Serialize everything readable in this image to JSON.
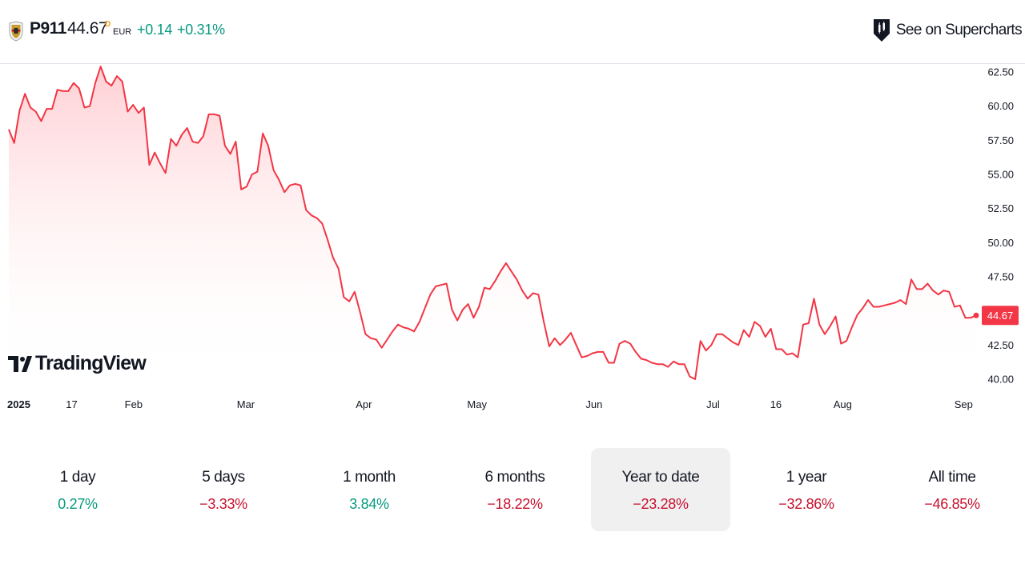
{
  "header": {
    "symbol": "P911",
    "price": "44.67",
    "price_flag": "D",
    "currency": "EUR",
    "change_abs": "+0.14",
    "change_pct": "+0.31%",
    "supercharts_label": "See on Supercharts"
  },
  "branding": {
    "tradingview_label": "TradingView"
  },
  "colors": {
    "line": "#f23645",
    "positive": "#089981",
    "negative": "#c8102e",
    "fill_top": "#ffcdd2"
  },
  "periods": [
    {
      "label": "1 day",
      "value": "0.27%",
      "sign": "pos",
      "active": false
    },
    {
      "label": "5 days",
      "value": "−3.33%",
      "sign": "neg",
      "active": false
    },
    {
      "label": "1 month",
      "value": "3.84%",
      "sign": "pos",
      "active": false
    },
    {
      "label": "6 months",
      "value": "−18.22%",
      "sign": "neg",
      "active": false
    },
    {
      "label": "Year to date",
      "value": "−23.28%",
      "sign": "neg",
      "active": true
    },
    {
      "label": "1 year",
      "value": "−32.86%",
      "sign": "neg",
      "active": false
    },
    {
      "label": "All time",
      "value": "−46.85%",
      "sign": "neg",
      "active": false
    }
  ],
  "chart_data": {
    "type": "area",
    "ylim": [
      40.0,
      62.5
    ],
    "y_ticks": [
      "40.00",
      "42.50",
      "45.00",
      "47.50",
      "50.00",
      "52.50",
      "55.00",
      "57.50",
      "60.00",
      "62.50"
    ],
    "x_tick_labels": [
      {
        "label": "2025",
        "t": 0.0
      },
      {
        "label": "17",
        "t": 0.065
      },
      {
        "label": "Feb",
        "t": 0.129
      },
      {
        "label": "Mar",
        "t": 0.245
      },
      {
        "label": "Apr",
        "t": 0.367
      },
      {
        "label": "May",
        "t": 0.484
      },
      {
        "label": "Jun",
        "t": 0.605
      },
      {
        "label": "Jul",
        "t": 0.728
      },
      {
        "label": "16",
        "t": 0.793
      },
      {
        "label": "Aug",
        "t": 0.862
      },
      {
        "label": "Sep",
        "t": 0.987
      }
    ],
    "last_value_label": "44.67",
    "series": [
      {
        "values": [
          58.3,
          57.3,
          59.7,
          60.9,
          59.9,
          59.6,
          58.9,
          59.8,
          59.8,
          61.2,
          61.1,
          61.1,
          61.7,
          61.3,
          59.9,
          60.0,
          61.7,
          62.9,
          61.8,
          61.5,
          62.2,
          61.8,
          59.6,
          60.1,
          59.5,
          59.9,
          55.7,
          56.6,
          55.8,
          55.1,
          57.6,
          57.1,
          57.9,
          58.4,
          57.4,
          57.3,
          57.8,
          59.4,
          59.4,
          59.3,
          57.1,
          56.5,
          57.4,
          53.9,
          54.1,
          55.0,
          55.2,
          58.0,
          57.1,
          55.3,
          54.6,
          53.7,
          54.2,
          54.3,
          54.2,
          52.4,
          52.0,
          51.8,
          51.4,
          50.2,
          48.9,
          48.1,
          46.0,
          45.7,
          46.4,
          44.9,
          43.3,
          43.0,
          42.9,
          42.3,
          42.9,
          43.5,
          44.0,
          43.8,
          43.7,
          43.5,
          44.2,
          45.2,
          46.2,
          46.8,
          46.9,
          47.0,
          45.1,
          44.3,
          45.1,
          45.5,
          44.5,
          45.3,
          46.7,
          46.6,
          47.2,
          47.9,
          48.5,
          47.9,
          47.3,
          46.5,
          45.9,
          46.3,
          46.2,
          44.2,
          42.4,
          43.0,
          42.5,
          42.9,
          43.4,
          42.5,
          41.6,
          41.7,
          41.9,
          42.0,
          42.0,
          41.2,
          41.2,
          42.6,
          42.8,
          42.6,
          42.0,
          41.5,
          41.4,
          41.2,
          41.1,
          41.1,
          40.9,
          41.3,
          41.1,
          41.1,
          40.2,
          40.0,
          42.8,
          42.1,
          42.5,
          43.3,
          43.3,
          43.0,
          42.7,
          42.5,
          43.6,
          43.1,
          44.2,
          43.9,
          43.1,
          43.7,
          42.2,
          42.2,
          41.8,
          41.9,
          41.6,
          44.0,
          44.1,
          45.9,
          44.0,
          43.3,
          43.9,
          44.6,
          42.6,
          42.8,
          43.8,
          44.7,
          45.2,
          45.8,
          45.3,
          45.3,
          45.4,
          45.5,
          45.6,
          45.8,
          45.5,
          47.3,
          46.6,
          46.6,
          47.0,
          46.5,
          46.2,
          46.5,
          46.4,
          45.3,
          45.4,
          44.5,
          44.5,
          44.67
        ]
      }
    ]
  }
}
